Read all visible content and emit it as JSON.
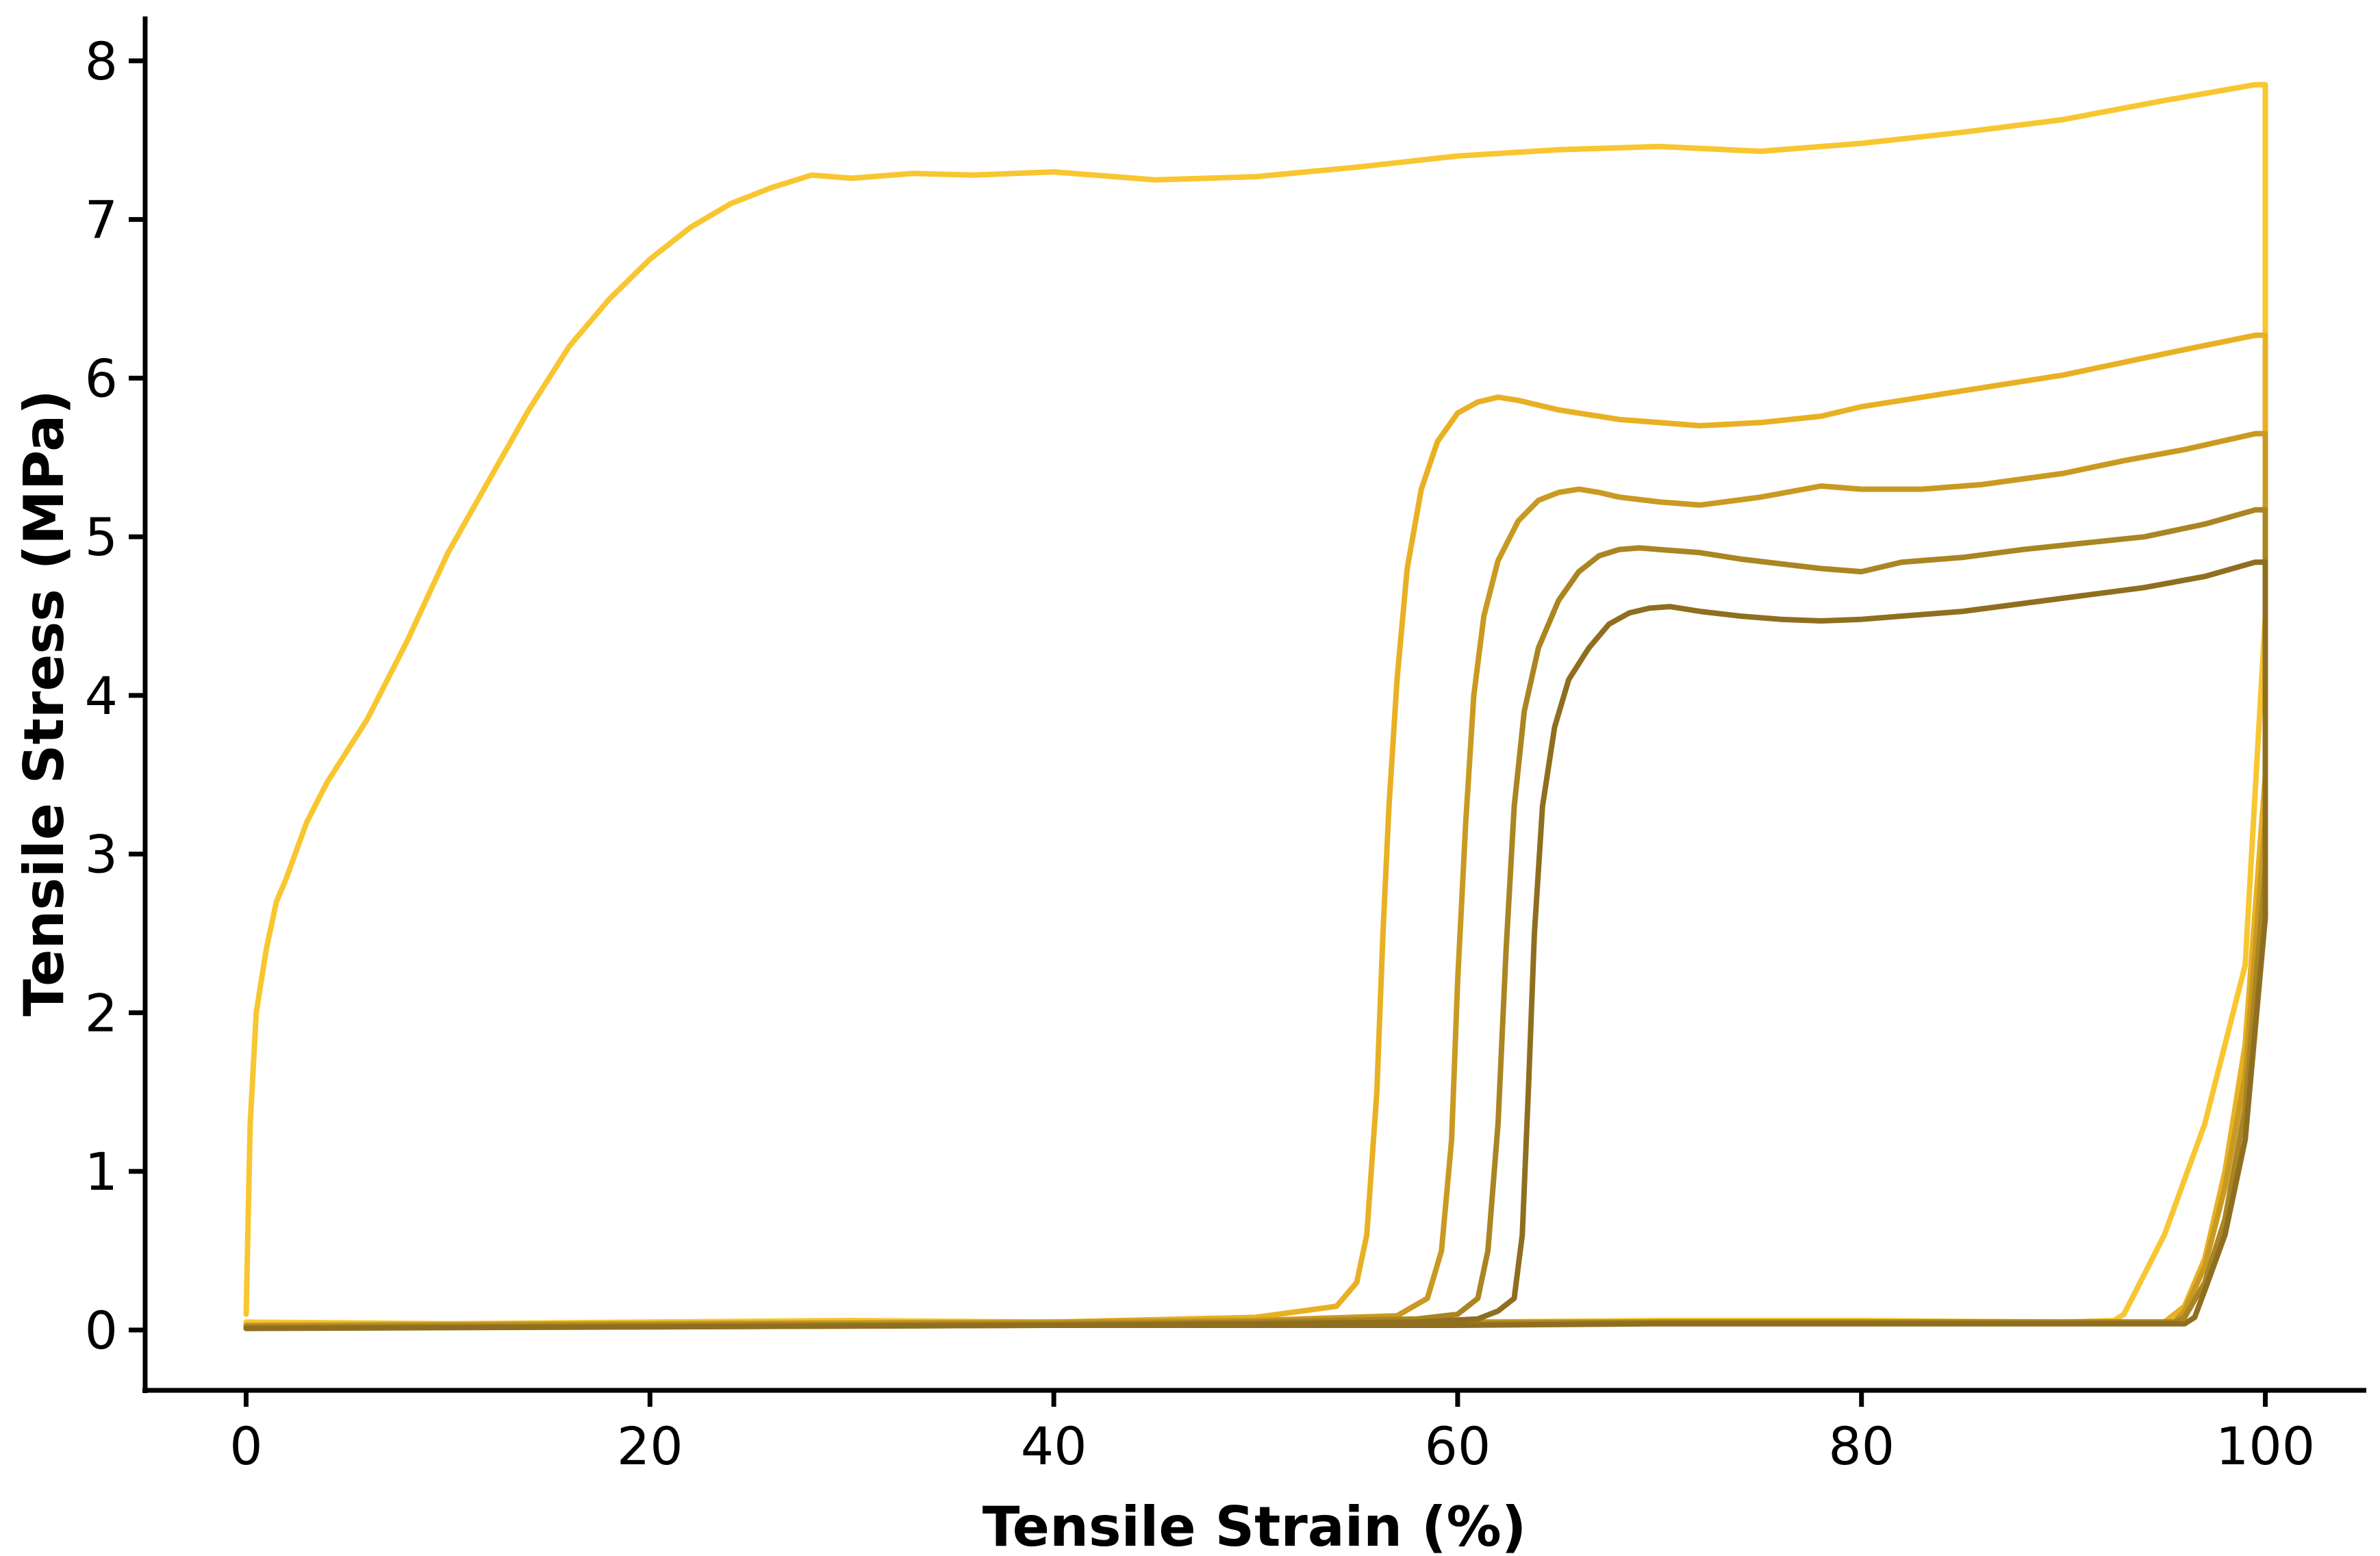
{
  "chart_data": {
    "type": "line",
    "title": "",
    "xlabel": "Tensile Strain (%)",
    "ylabel": "Tensile Stress (MPa)",
    "xlim": [
      -5,
      105
    ],
    "ylim": [
      -0.38,
      8.28
    ],
    "x_ticks": [
      "0",
      "20",
      "40",
      "60",
      "80",
      "100"
    ],
    "x_tick_values": [
      0,
      20,
      40,
      60,
      80,
      100
    ],
    "y_ticks": [
      "0",
      "1",
      "2",
      "3",
      "4",
      "5",
      "6",
      "7",
      "8"
    ],
    "y_tick_values": [
      0,
      1,
      2,
      3,
      4,
      5,
      6,
      7,
      8
    ],
    "grid": false,
    "legend": "none",
    "series": [
      {
        "color": "#F8C630",
        "x": [
          0,
          0.2,
          0.5,
          1,
          1.5,
          2,
          3,
          4,
          5,
          6,
          8,
          10,
          12,
          14,
          16,
          18,
          20,
          22,
          24,
          26,
          28,
          30,
          33,
          36,
          40,
          45,
          50,
          55,
          60,
          65,
          70,
          75,
          80,
          85,
          90,
          95,
          99.5,
          100,
          100,
          99,
          97,
          95,
          93,
          92.5,
          90,
          80,
          70,
          60,
          50,
          40,
          30,
          20,
          10,
          0
        ],
        "y": [
          0.1,
          1.3,
          2.0,
          2.4,
          2.7,
          2.85,
          3.2,
          3.45,
          3.65,
          3.85,
          4.35,
          4.9,
          5.35,
          5.8,
          6.2,
          6.5,
          6.75,
          6.95,
          7.1,
          7.2,
          7.28,
          7.26,
          7.29,
          7.28,
          7.3,
          7.25,
          7.27,
          7.33,
          7.4,
          7.44,
          7.46,
          7.43,
          7.48,
          7.55,
          7.63,
          7.75,
          7.85,
          7.85,
          4.5,
          2.3,
          1.3,
          0.6,
          0.1,
          0.06,
          0.05,
          0.06,
          0.06,
          0.05,
          0.06,
          0.05,
          0.06,
          0.05,
          0.04,
          0.05
        ]
      },
      {
        "color": "#E8B023",
        "x": [
          0,
          20,
          40,
          50,
          54,
          55,
          55.5,
          56,
          56.3,
          56.6,
          57,
          57.5,
          58.2,
          59,
          60,
          61,
          62,
          63,
          65,
          68,
          70,
          72,
          75,
          78,
          80,
          83,
          86,
          90,
          93,
          96,
          99.5,
          100,
          100,
          99,
          98,
          97,
          96,
          95,
          94,
          93,
          90,
          80,
          70,
          60,
          50,
          40,
          20,
          0
        ],
        "y": [
          0.03,
          0.04,
          0.05,
          0.08,
          0.15,
          0.3,
          0.6,
          1.5,
          2.5,
          3.3,
          4.1,
          4.8,
          5.3,
          5.6,
          5.78,
          5.85,
          5.88,
          5.86,
          5.8,
          5.74,
          5.72,
          5.7,
          5.72,
          5.76,
          5.82,
          5.88,
          5.94,
          6.02,
          6.1,
          6.18,
          6.27,
          6.27,
          3.5,
          1.8,
          1.0,
          0.45,
          0.15,
          0.05,
          0.05,
          0.05,
          0.05,
          0.05,
          0.05,
          0.05,
          0.05,
          0.04,
          0.04,
          0.03
        ]
      },
      {
        "color": "#C99A22",
        "x": [
          0,
          20,
          40,
          50,
          57,
          58.5,
          59.2,
          59.7,
          60,
          60.4,
          60.8,
          61.3,
          62,
          63,
          64,
          65,
          66,
          67,
          68,
          70,
          72,
          75,
          78,
          80,
          83,
          86,
          90,
          93,
          96,
          99.5,
          100,
          100,
          99,
          98,
          97,
          96,
          95.5,
          95,
          94,
          90,
          80,
          70,
          60,
          50,
          40,
          20,
          0
        ],
        "y": [
          0.03,
          0.04,
          0.05,
          0.06,
          0.09,
          0.2,
          0.5,
          1.2,
          2.2,
          3.2,
          4.0,
          4.5,
          4.85,
          5.1,
          5.23,
          5.28,
          5.3,
          5.28,
          5.25,
          5.22,
          5.2,
          5.25,
          5.32,
          5.3,
          5.3,
          5.33,
          5.4,
          5.48,
          5.55,
          5.65,
          5.65,
          3.2,
          1.6,
          0.9,
          0.4,
          0.12,
          0.05,
          0.05,
          0.05,
          0.05,
          0.05,
          0.05,
          0.05,
          0.04,
          0.04,
          0.03,
          0.02
        ]
      },
      {
        "color": "#AA8522",
        "x": [
          0,
          20,
          40,
          50,
          58,
          60,
          61,
          61.5,
          62,
          62.4,
          62.8,
          63.3,
          64,
          65,
          66,
          67,
          68,
          69,
          70,
          72,
          74,
          76,
          78,
          80,
          82,
          85,
          88,
          91,
          94,
          97,
          99.5,
          100,
          100,
          99,
          98,
          97,
          96,
          95.5,
          95,
          90,
          80,
          70,
          60,
          50,
          40,
          20,
          0
        ],
        "y": [
          0.02,
          0.03,
          0.04,
          0.05,
          0.07,
          0.1,
          0.2,
          0.5,
          1.3,
          2.4,
          3.3,
          3.9,
          4.3,
          4.6,
          4.78,
          4.88,
          4.92,
          4.93,
          4.92,
          4.9,
          4.86,
          4.83,
          4.8,
          4.78,
          4.84,
          4.87,
          4.92,
          4.96,
          5.0,
          5.08,
          5.17,
          5.17,
          2.9,
          1.4,
          0.7,
          0.3,
          0.08,
          0.05,
          0.05,
          0.05,
          0.05,
          0.05,
          0.04,
          0.04,
          0.03,
          0.02,
          0.02
        ]
      },
      {
        "color": "#8F6F1F",
        "x": [
          0,
          20,
          40,
          50,
          58,
          61,
          62,
          62.8,
          63.2,
          63.5,
          63.8,
          64.2,
          64.8,
          65.5,
          66.5,
          67.5,
          68.5,
          69.5,
          70.5,
          72,
          74,
          76,
          78,
          80,
          82,
          85,
          88,
          91,
          94,
          97,
          99.5,
          100,
          100,
          99,
          98,
          97,
          96.5,
          96,
          95,
          90,
          80,
          70,
          60,
          50,
          40,
          20,
          0
        ],
        "y": [
          0.01,
          0.02,
          0.03,
          0.04,
          0.05,
          0.07,
          0.12,
          0.2,
          0.6,
          1.5,
          2.5,
          3.3,
          3.8,
          4.1,
          4.3,
          4.45,
          4.52,
          4.55,
          4.56,
          4.53,
          4.5,
          4.48,
          4.47,
          4.48,
          4.5,
          4.53,
          4.58,
          4.63,
          4.68,
          4.75,
          4.84,
          4.84,
          2.6,
          1.2,
          0.6,
          0.25,
          0.08,
          0.04,
          0.04,
          0.04,
          0.04,
          0.04,
          0.03,
          0.03,
          0.03,
          0.02,
          0.01
        ]
      }
    ]
  }
}
